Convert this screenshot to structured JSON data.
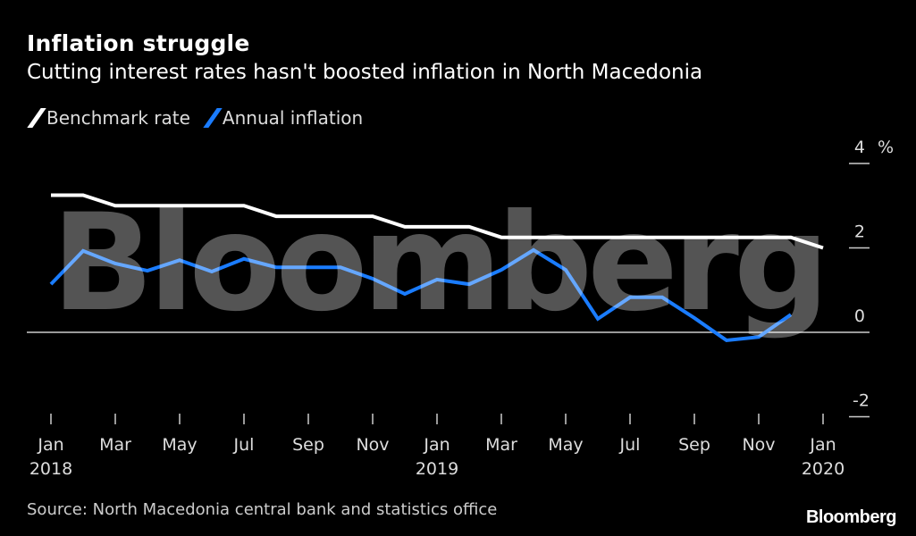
{
  "chart_data": {
    "type": "line",
    "title": "Inflation struggle",
    "subtitle": "Cutting interest rates hasn't boosted inflation in North Macedonia",
    "x": [
      "2018-01",
      "2018-02",
      "2018-03",
      "2018-04",
      "2018-05",
      "2018-06",
      "2018-07",
      "2018-08",
      "2018-09",
      "2018-10",
      "2018-11",
      "2018-12",
      "2019-01",
      "2019-02",
      "2019-03",
      "2019-04",
      "2019-05",
      "2019-06",
      "2019-07",
      "2019-08",
      "2019-09",
      "2019-10",
      "2019-11",
      "2019-12",
      "2020-01"
    ],
    "series": [
      {
        "name": "Benchmark rate",
        "color": "#ffffff",
        "values": [
          3.25,
          3.25,
          3.0,
          3.0,
          3.0,
          3.0,
          3.0,
          2.75,
          2.75,
          2.75,
          2.75,
          2.5,
          2.5,
          2.5,
          2.25,
          2.25,
          2.25,
          2.25,
          2.25,
          2.25,
          2.25,
          2.25,
          2.25,
          2.25,
          2.0
        ]
      },
      {
        "name": "Annual inflation",
        "color": "#1a7cff",
        "values": [
          1.14,
          1.93,
          1.63,
          1.46,
          1.71,
          1.44,
          1.74,
          1.54,
          1.54,
          1.54,
          1.27,
          0.91,
          1.25,
          1.14,
          1.48,
          1.95,
          1.48,
          0.32,
          0.83,
          0.83,
          0.34,
          -0.19,
          -0.11,
          0.42,
          null
        ]
      }
    ],
    "xticks": [
      {
        "m": 0,
        "label": "Jan",
        "year": "2018"
      },
      {
        "m": 2,
        "label": "Mar"
      },
      {
        "m": 4,
        "label": "May"
      },
      {
        "m": 6,
        "label": "Jul"
      },
      {
        "m": 8,
        "label": "Sep"
      },
      {
        "m": 10,
        "label": "Nov"
      },
      {
        "m": 12,
        "label": "Jan",
        "year": "2019"
      },
      {
        "m": 14,
        "label": "Mar"
      },
      {
        "m": 16,
        "label": "May"
      },
      {
        "m": 18,
        "label": "Jul"
      },
      {
        "m": 20,
        "label": "Sep"
      },
      {
        "m": 22,
        "label": "Nov"
      },
      {
        "m": 24,
        "label": "Jan",
        "year": "2020"
      }
    ],
    "yticks": [
      4,
      2,
      0,
      -2
    ],
    "yunit": "%",
    "ylim": [
      -2,
      4
    ],
    "legend": "top-left",
    "grid": false
  },
  "source": "Source: North Macedonia central bank and statistics office",
  "logo": "Bloomberg",
  "watermark": "Bloomberg"
}
